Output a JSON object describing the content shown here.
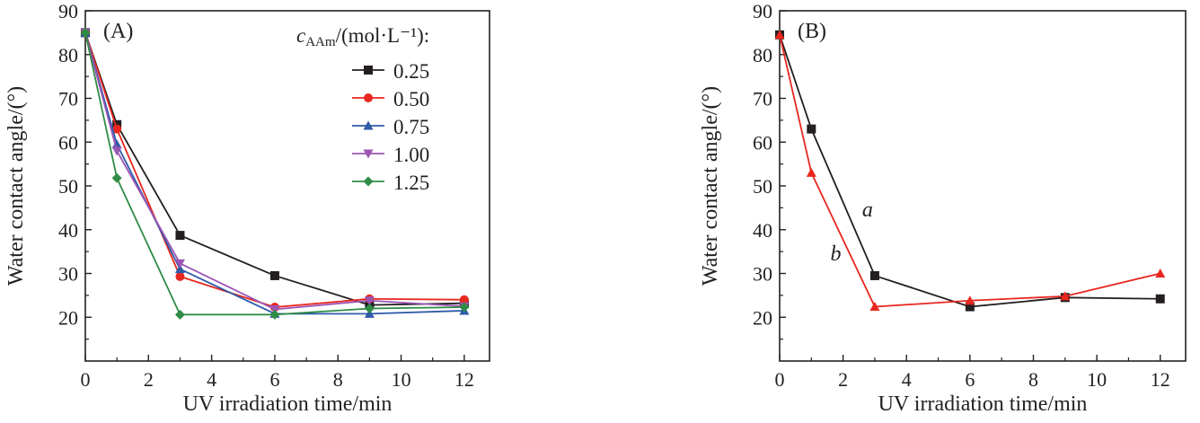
{
  "chart_data": [
    {
      "type": "line",
      "panel_label": "(A)",
      "xlabel": "UV irradiation time/min",
      "ylabel": "Water contact angle/(°)",
      "xlim": [
        0,
        12.8
      ],
      "ylim": [
        10,
        90
      ],
      "xticks": [
        "0",
        "2",
        "4",
        "6",
        "8",
        "10",
        "12"
      ],
      "yticks": [
        "20",
        "30",
        "40",
        "50",
        "60",
        "70",
        "80",
        "90"
      ],
      "legend_title": {
        "symbol": "c",
        "subscript": "AAm",
        "unit": "/(mol·L⁻¹):"
      },
      "legend_position": "top-right",
      "x": [
        0,
        1,
        3,
        6,
        9,
        12
      ],
      "series": [
        {
          "name": "0.25",
          "color": "#231f20",
          "marker": "square",
          "values": [
            85,
            64,
            38.7,
            29.5,
            22.8,
            23.2
          ]
        },
        {
          "name": "0.50",
          "color": "#e8271f",
          "marker": "circle",
          "values": [
            85,
            63,
            29.3,
            22.3,
            24.2,
            24.0
          ]
        },
        {
          "name": "0.75",
          "color": "#2e5aa8",
          "marker": "triangle-up",
          "values": [
            85,
            59.5,
            31.0,
            20.8,
            20.8,
            21.5
          ]
        },
        {
          "name": "1.00",
          "color": "#9b55b5",
          "marker": "triangle-down",
          "values": [
            85,
            58,
            32.3,
            21.8,
            23.8,
            22.5
          ]
        },
        {
          "name": "1.25",
          "color": "#2f8b46",
          "marker": "diamond",
          "values": [
            85,
            51.8,
            20.6,
            20.6,
            22.0,
            22.3
          ]
        }
      ]
    },
    {
      "type": "line",
      "panel_label": "(B)",
      "xlabel": "UV irradiation time/min",
      "ylabel": "Water contact angle/(°)",
      "xlim": [
        0,
        12.8
      ],
      "ylim": [
        10,
        90
      ],
      "xticks": [
        "0",
        "2",
        "4",
        "6",
        "8",
        "10",
        "12"
      ],
      "yticks": [
        "20",
        "30",
        "40",
        "50",
        "60",
        "70",
        "80",
        "90"
      ],
      "x": [
        0,
        1,
        3,
        6,
        9,
        12
      ],
      "series": [
        {
          "name": "a",
          "color": "#231f20",
          "marker": "square",
          "values": [
            84.5,
            63,
            29.5,
            22.4,
            24.5,
            24.2
          ]
        },
        {
          "name": "b",
          "color": "#e8271f",
          "marker": "triangle-up",
          "values": [
            84.5,
            53,
            22.4,
            23.8,
            24.8,
            30.0
          ]
        }
      ],
      "annotations": [
        {
          "text": "a",
          "x": 2.6,
          "y": 43
        },
        {
          "text": "b",
          "x": 1.6,
          "y": 33
        }
      ]
    }
  ]
}
